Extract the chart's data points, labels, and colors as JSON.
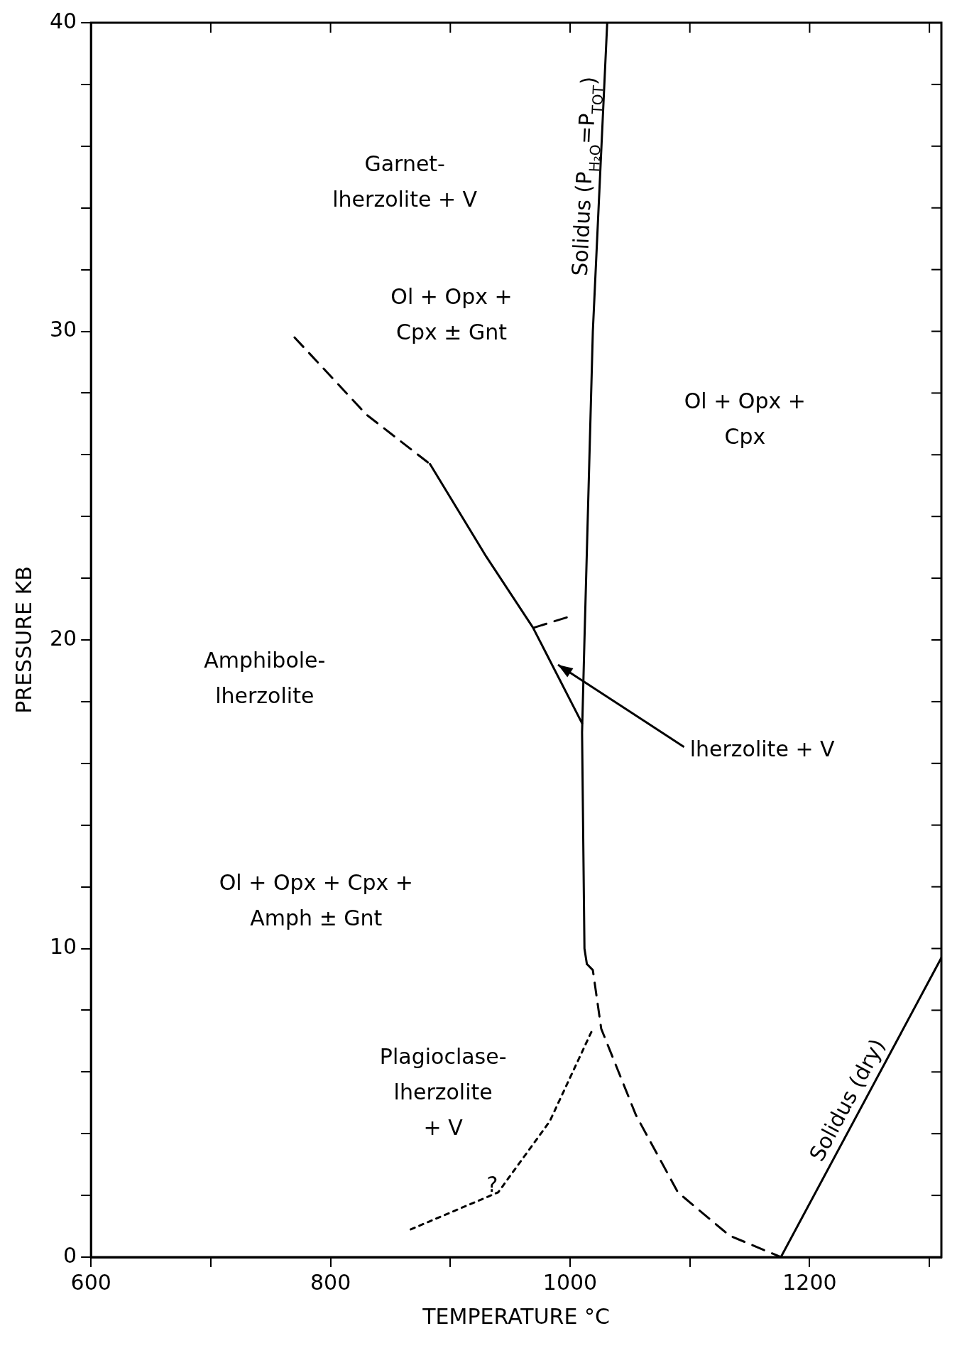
{
  "chart_data": {
    "type": "line",
    "xlabel": "TEMPERATURE °C",
    "ylabel": "PRESSURE KB",
    "xlim": [
      600,
      1310
    ],
    "ylim": [
      0,
      40
    ],
    "xticks": [
      600,
      {
        "value": 700,
        "label": null
      },
      800,
      {
        "value": 900,
        "label": null
      },
      1000,
      {
        "value": 1100,
        "label": null
      },
      1200,
      {
        "value": 1300,
        "label": null
      }
    ],
    "yticks": [
      0,
      {
        "value": 2,
        "label": null
      },
      {
        "value": 4,
        "label": null
      },
      {
        "value": 6,
        "label": null
      },
      {
        "value": 8,
        "label": null
      },
      10,
      {
        "value": 12,
        "label": null
      },
      {
        "value": 14,
        "label": null
      },
      {
        "value": 16,
        "label": null
      },
      {
        "value": 18,
        "label": null
      },
      20,
      {
        "value": 22,
        "label": null
      },
      {
        "value": 24,
        "label": null
      },
      {
        "value": 26,
        "label": null
      },
      {
        "value": 28,
        "label": null
      },
      30,
      {
        "value": 32,
        "label": null
      },
      {
        "value": 34,
        "label": null
      },
      {
        "value": 36,
        "label": null
      },
      {
        "value": 38,
        "label": null
      },
      40
    ],
    "grid": false,
    "legend": false,
    "marker": "none",
    "series": [
      {
        "name": "Solidus (P$_{H₂O}$=P$_{TOT}$)",
        "color": "#000000",
        "line_style": "solid",
        "x": [
          1031,
          1019,
          1012,
          1010,
          1012,
          1014
        ],
        "values": [
          40,
          30,
          20,
          17,
          10,
          9.5
        ]
      },
      {
        "color": "#000000",
        "line_style": "dashed",
        "x": [
          1014,
          1019,
          1026,
          1055,
          1090,
          1133,
          1176
        ],
        "values": [
          9.5,
          9.3,
          7.4,
          4.6,
          2.1,
          0.7,
          0
        ]
      },
      {
        "color": "#000000",
        "line_style": "dashed",
        "x": [
          770,
          830,
          883
        ],
        "values": [
          29.8,
          27.3,
          25.7
        ]
      },
      {
        "color": "#000000",
        "line_style": "solid",
        "x": [
          883,
          930,
          969,
          1010
        ],
        "values": [
          25.7,
          22.7,
          20.4,
          17.3
        ]
      },
      {
        "color": "#000000",
        "line_style": "dashed",
        "x": [
          970,
          1003
        ],
        "values": [
          20.4,
          20.8
        ]
      },
      {
        "color": "#000000",
        "line_style": "dotted",
        "x": [
          867,
          940,
          983,
          1019
        ],
        "values": [
          0.9,
          2.1,
          4.4,
          7.4
        ]
      },
      {
        "name": "Solidus (dry)",
        "color": "#000000",
        "line_style": "solid",
        "x": [
          1176,
          1310
        ],
        "values": [
          0,
          9.7
        ]
      }
    ],
    "annotations": [
      "Garnet-\nlherzolite + V",
      "Ol + Opx +\nCpx ± Gnt",
      "Ol + Opx +\nCpx",
      "Amphibole-\nlherzolite",
      "Ol + Opx + Cpx +\nAmph ± Gnt",
      "Plagioclase-\nlherzolite\n+ V",
      "lherzolite + V",
      "?"
    ]
  }
}
